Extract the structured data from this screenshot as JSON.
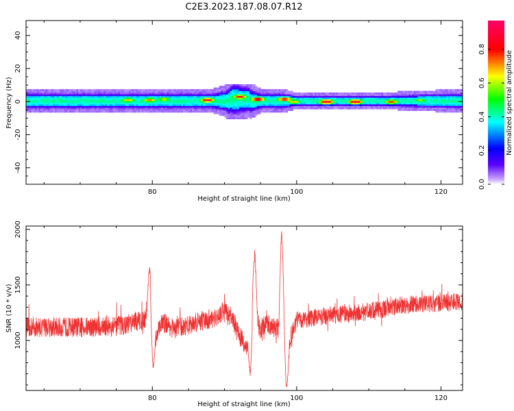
{
  "figure": {
    "title": "C2E3.2023.187.08.07.R12"
  },
  "chart_data": [
    {
      "type": "heatmap",
      "xlabel": "Height of straight line (km)",
      "ylabel": "Frequency (Hz)",
      "xlim": [
        62.5,
        123
      ],
      "ylim": [
        -50,
        49
      ],
      "xticks": [
        "80",
        "100",
        "120"
      ],
      "yticks": [
        "40",
        "20",
        "0",
        "-20",
        "-40"
      ],
      "colorbar": {
        "label": "Normalized spectral amplitude",
        "range": [
          0,
          0.97
        ],
        "ticks": [
          "0.0",
          "0.2",
          "0.4",
          "0.6",
          "0.8"
        ],
        "colormap": [
          "#ffffff",
          "#5a00ff",
          "#0000ff",
          "#00ffff",
          "#00ff00",
          "#ffff00",
          "#ff0000",
          "#ff0066"
        ]
      },
      "band": {
        "description_center_hz": 0,
        "halfwidth_hz": [
          [
            62.5,
            3
          ],
          [
            80,
            3
          ],
          [
            88,
            3
          ],
          [
            90,
            4
          ],
          [
            91,
            6
          ],
          [
            93,
            5
          ],
          [
            95,
            3
          ],
          [
            98,
            3
          ],
          [
            100,
            2
          ],
          [
            110,
            2
          ],
          [
            123,
            3
          ]
        ],
        "hotspots": [
          {
            "x": 76.5,
            "y": 1,
            "v": 0.7
          },
          {
            "x": 79.5,
            "y": 1,
            "v": 0.75
          },
          {
            "x": 81.5,
            "y": 1.5,
            "v": 0.65
          },
          {
            "x": 87.5,
            "y": 1,
            "v": 0.9
          },
          {
            "x": 92,
            "y": 3,
            "v": 0.85
          },
          {
            "x": 94.5,
            "y": 1.5,
            "v": 0.9
          },
          {
            "x": 98.2,
            "y": 1.5,
            "v": 0.85
          },
          {
            "x": 99.5,
            "y": 0,
            "v": 0.7
          },
          {
            "x": 104,
            "y": 0,
            "v": 0.95
          },
          {
            "x": 108,
            "y": 0,
            "v": 0.95
          },
          {
            "x": 113,
            "y": 0,
            "v": 0.8
          },
          {
            "x": 117,
            "y": 1,
            "v": 0.6
          }
        ]
      }
    },
    {
      "type": "line",
      "xlabel": "Height of straight line (km)",
      "ylabel": "SNR (10 * v/v)",
      "xlim": [
        62.5,
        123
      ],
      "ylim": [
        550,
        2030
      ],
      "xticks": [
        "80",
        "100",
        "120"
      ],
      "yticks": [
        "2000",
        "1500",
        "1000"
      ],
      "color": "#ee3333",
      "trend": [
        [
          62.5,
          1120
        ],
        [
          70,
          1120
        ],
        [
          75,
          1130
        ],
        [
          77,
          1150
        ],
        [
          79,
          1200
        ],
        [
          79.7,
          1450
        ],
        [
          80.2,
          950
        ],
        [
          81,
          1150
        ],
        [
          82,
          1150
        ],
        [
          83,
          1100
        ],
        [
          86,
          1160
        ],
        [
          89,
          1200
        ],
        [
          90,
          1280
        ],
        [
          91,
          1200
        ],
        [
          92,
          1050
        ],
        [
          93.5,
          900
        ],
        [
          94,
          1500
        ],
        [
          94.8,
          1100
        ],
        [
          96,
          1150
        ],
        [
          97.5,
          1100
        ],
        [
          98,
          1650
        ],
        [
          98.6,
          700
        ],
        [
          99.2,
          1050
        ],
        [
          100,
          1180
        ],
        [
          105,
          1230
        ],
        [
          110,
          1260
        ],
        [
          115,
          1320
        ],
        [
          120,
          1340
        ],
        [
          123,
          1350
        ]
      ],
      "spikes": [
        {
          "x": 79.6,
          "y": 1700
        },
        {
          "x": 80.1,
          "y": 700
        },
        {
          "x": 93.6,
          "y": 640
        },
        {
          "x": 94.2,
          "y": 1850
        },
        {
          "x": 97.9,
          "y": 2030
        },
        {
          "x": 98.6,
          "y": 550
        }
      ],
      "noise_amplitude": 90
    }
  ]
}
